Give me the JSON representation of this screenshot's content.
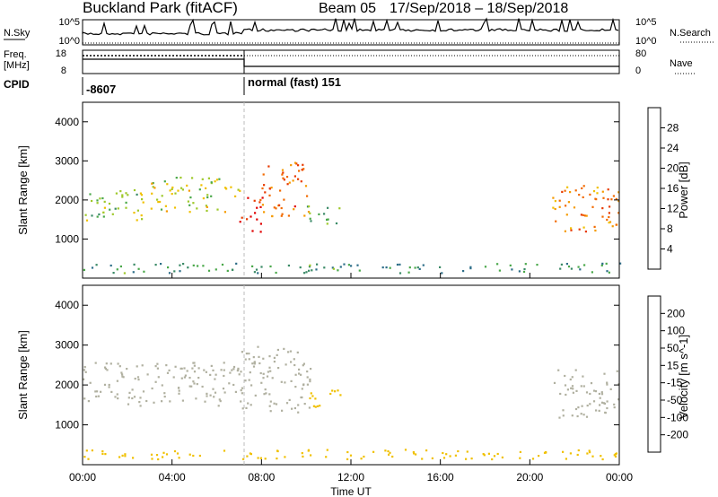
{
  "header": {
    "station": "Buckland Park (fitACF)",
    "beam": "Beam 05",
    "date_range": "17/Sep/2018 – 18/Sep/2018"
  },
  "panels": {
    "nsky_label": "N.Sky",
    "nsky_ticks": [
      "10^5",
      "10^0"
    ],
    "nsearch_label": "N.Search",
    "nsearch_ticks": [
      "10^5",
      "10^0"
    ],
    "freq_label_1": "Freq.",
    "freq_label_2": "[MHz]",
    "freq_ticks": [
      "18",
      "8"
    ],
    "nave_label": "Nave",
    "nave_ticks": [
      "80",
      "0"
    ],
    "cpid_label": "CPID",
    "cpid_1": "-8607",
    "cpid_2": "normal (fast) 151"
  },
  "colors": {
    "power_scale": [
      "#0000cc",
      "#1f3f9f",
      "#2d6e88",
      "#3a8a66",
      "#4aa84a",
      "#9ec82a",
      "#f0c000",
      "#f59a00",
      "#f26a00",
      "#e83a00",
      "#e00000"
    ],
    "velocity_scale": [
      "#1b2ab0",
      "#2f6a9a",
      "#3d8a55",
      "#75c43d",
      "#b4b4a6",
      "#b0b0a0",
      "#f0c000",
      "#f08a00",
      "#e85000",
      "#e00000"
    ]
  },
  "chart_data": [
    {
      "type": "heatmap",
      "title": "",
      "ylabel": "Slant Range [km]",
      "xlabel": "",
      "x_ticks": [
        "00:00",
        "04:00",
        "08:00",
        "12:00",
        "16:00",
        "20:00",
        "00:00"
      ],
      "y_ticks": [
        1000,
        2000,
        3000,
        4000
      ],
      "ylim": [
        0,
        4500
      ],
      "xlim_hours": [
        0,
        24
      ],
      "colorbar_label": "Power [dB]",
      "colorbar_ticks": [
        4,
        8,
        12,
        16,
        20,
        24,
        28
      ],
      "colorbar_range": [
        0,
        30
      ],
      "echo_regions": [
        {
          "t_start": 0.0,
          "t_end": 3.0,
          "r_low": 1500,
          "r_high": 2300,
          "value": 14
        },
        {
          "t_start": 3.0,
          "t_end": 7.0,
          "r_low": 1700,
          "r_high": 2600,
          "value": 16
        },
        {
          "t_start": 7.0,
          "t_end": 8.0,
          "r_low": 1200,
          "r_high": 2100,
          "value": 28
        },
        {
          "t_start": 8.0,
          "t_end": 10.2,
          "r_low": 1600,
          "r_high": 3000,
          "value": 24
        },
        {
          "t_start": 10.0,
          "t_end": 11.5,
          "r_low": 1400,
          "r_high": 1900,
          "value": 12
        },
        {
          "t_start": 21.0,
          "t_end": 24.0,
          "r_low": 1200,
          "r_high": 2400,
          "value": 22
        },
        {
          "t_start": 0.0,
          "t_end": 24.0,
          "r_low": 150,
          "r_high": 400,
          "value": 10
        }
      ]
    },
    {
      "type": "heatmap",
      "title": "",
      "ylabel": "Slant Range [km]",
      "xlabel": "Time UT",
      "x_ticks": [
        "00:00",
        "04:00",
        "08:00",
        "12:00",
        "16:00",
        "20:00",
        "00:00"
      ],
      "y_ticks": [
        1000,
        2000,
        3000,
        4000
      ],
      "ylim": [
        0,
        4500
      ],
      "xlim_hours": [
        0,
        24
      ],
      "colorbar_label": "Velocity [m s^-1]",
      "colorbar_ticks": [
        200,
        100,
        50,
        15,
        -15,
        -50,
        -100,
        -200
      ],
      "echo_regions": [
        {
          "t_start": 0.0,
          "t_end": 7.0,
          "r_low": 1500,
          "r_high": 2600,
          "value": 0
        },
        {
          "t_start": 7.0,
          "t_end": 10.2,
          "r_low": 1300,
          "r_high": 3000,
          "value": 0
        },
        {
          "t_start": 10.0,
          "t_end": 11.5,
          "r_low": 1400,
          "r_high": 1900,
          "value": -50
        },
        {
          "t_start": 21.0,
          "t_end": 24.0,
          "r_low": 1200,
          "r_high": 2400,
          "value": 0
        },
        {
          "t_start": 0.0,
          "t_end": 24.0,
          "r_low": 150,
          "r_high": 400,
          "value": -30
        }
      ]
    }
  ]
}
